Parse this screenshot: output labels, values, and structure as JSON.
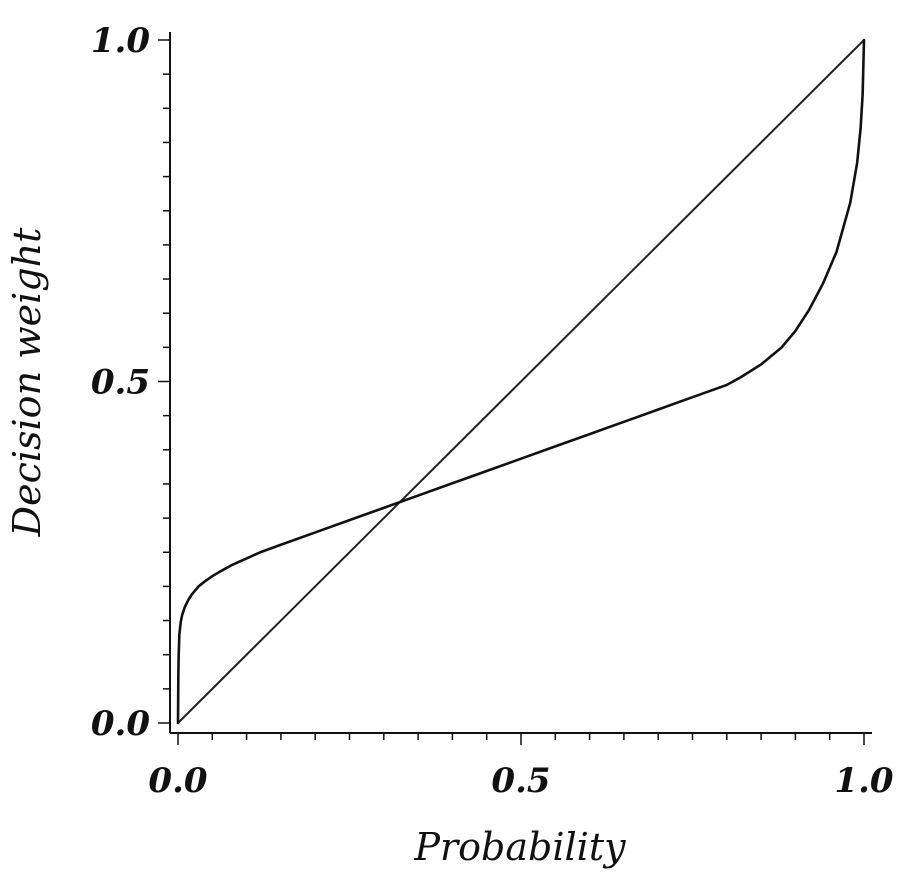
{
  "chart_data": {
    "type": "line",
    "title": "",
    "xlabel": "Probability",
    "ylabel": "Decision weight",
    "xlim": [
      0,
      1
    ],
    "ylim": [
      0,
      1
    ],
    "grid": false,
    "x_ticks": [
      {
        "value": 0.0,
        "label": "0.0"
      },
      {
        "value": 0.5,
        "label": "0.5"
      },
      {
        "value": 1.0,
        "label": "1.0"
      }
    ],
    "y_ticks": [
      {
        "value": 0.0,
        "label": "0.0"
      },
      {
        "value": 0.5,
        "label": "0.5"
      },
      {
        "value": 1.0,
        "label": "1.0"
      }
    ],
    "minor_tick_step": 0.05,
    "series": [
      {
        "x": [
          0,
          1
        ],
        "y": [
          0,
          1
        ],
        "color": "#222222"
      },
      {
        "x": [
          0,
          0.0005,
          0.001,
          0.002,
          0.004,
          0.006,
          0.01,
          0.015,
          0.02,
          0.03,
          0.04,
          0.05,
          0.06,
          0.08,
          0.1,
          0.12,
          0.15,
          0.2,
          0.25,
          0.3,
          0.35,
          0.4,
          0.45,
          0.5,
          0.55,
          0.6,
          0.65,
          0.7,
          0.75,
          0.8,
          0.82,
          0.85,
          0.88,
          0.9,
          0.92,
          0.94,
          0.96,
          0.98,
          0.99,
          0.995,
          0.998,
          1.0
        ],
        "y": [
          0,
          0.07,
          0.1,
          0.13,
          0.148,
          0.158,
          0.17,
          0.18,
          0.188,
          0.2,
          0.208,
          0.215,
          0.221,
          0.232,
          0.241,
          0.25,
          0.261,
          0.279,
          0.297,
          0.315,
          0.333,
          0.351,
          0.369,
          0.387,
          0.405,
          0.423,
          0.441,
          0.459,
          0.477,
          0.495,
          0.506,
          0.525,
          0.55,
          0.574,
          0.605,
          0.643,
          0.69,
          0.762,
          0.82,
          0.87,
          0.92,
          1.0
        ],
        "color": "#111111"
      }
    ]
  }
}
